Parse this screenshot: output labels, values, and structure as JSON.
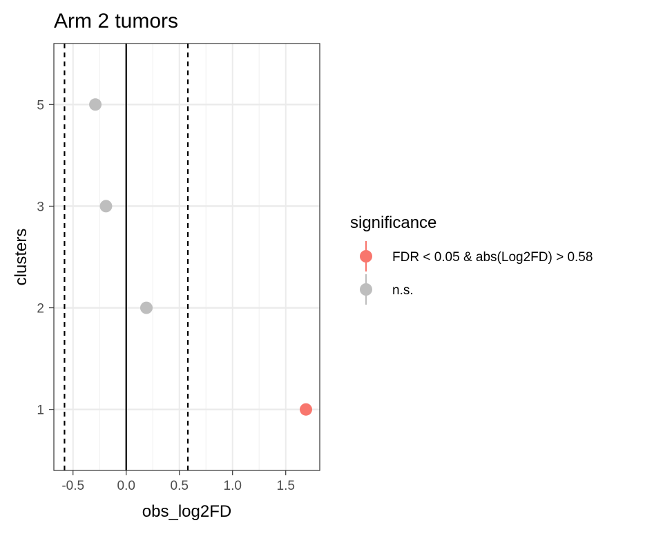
{
  "chart_data": {
    "type": "scatter",
    "title": "Arm 2 tumors",
    "xlabel": "obs_log2FD",
    "ylabel": "clusters",
    "xlim": [
      -0.68,
      1.82
    ],
    "x_ticks": [
      -0.5,
      0.0,
      0.5,
      1.0,
      1.5
    ],
    "x_tick_labels": [
      "-0.5",
      "0.0",
      "0.5",
      "1.0",
      "1.5"
    ],
    "categories": [
      "1",
      "2",
      "3",
      "5"
    ],
    "reference_lines": [
      {
        "x": -0.58,
        "style": "dashed"
      },
      {
        "x": 0,
        "style": "solid"
      },
      {
        "x": 0.58,
        "style": "dashed"
      }
    ],
    "grid": true,
    "legend": {
      "title": "significance",
      "position": "right",
      "entries": [
        {
          "label": "FDR < 0.05 & abs(Log2FD) > 0.58",
          "color": "#F8766D"
        },
        {
          "label": "n.s.",
          "color": "#BEBEBE"
        }
      ]
    },
    "points": [
      {
        "cluster": "5",
        "x": -0.29,
        "significance": "n.s."
      },
      {
        "cluster": "3",
        "x": -0.19,
        "significance": "n.s."
      },
      {
        "cluster": "2",
        "x": 0.19,
        "significance": "n.s."
      },
      {
        "cluster": "1",
        "x": 1.69,
        "significance": "FDR < 0.05 & abs(Log2FD) > 0.58"
      }
    ]
  }
}
